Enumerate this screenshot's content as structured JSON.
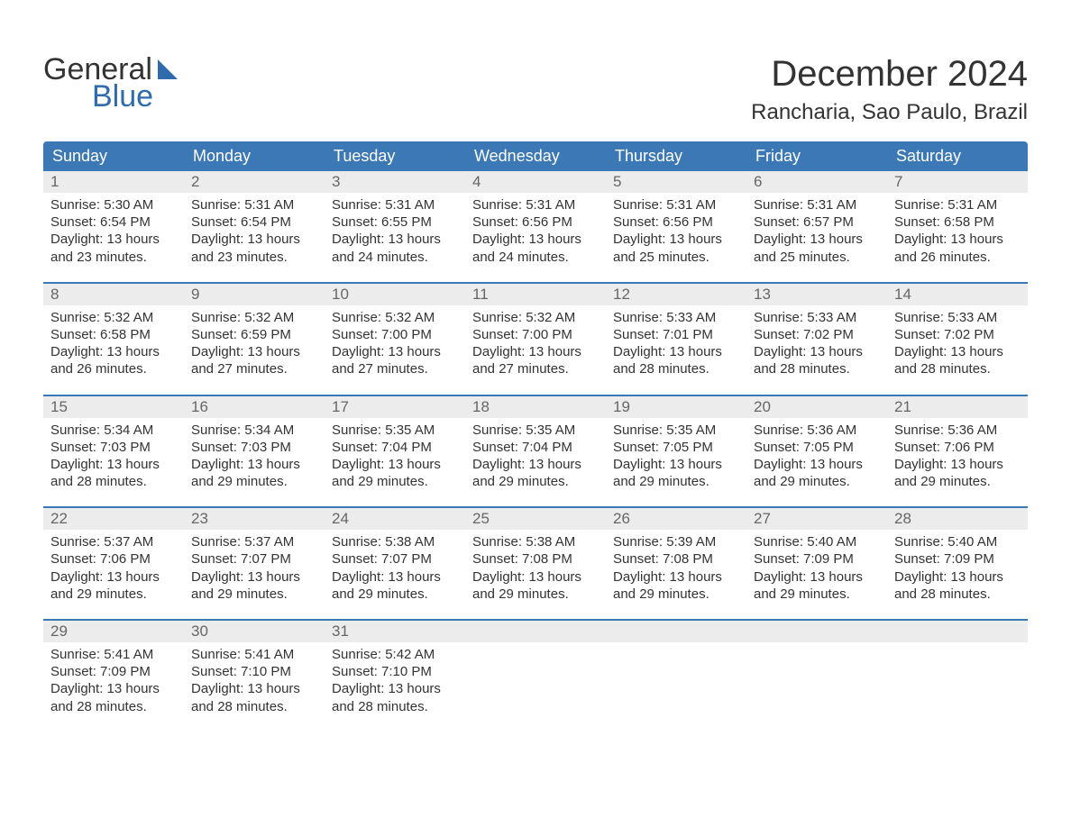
{
  "brand": {
    "line1": "General",
    "line2": "Blue",
    "logo_color": "#2f6bad",
    "text_color": "#333333"
  },
  "title": {
    "month": "December 2024",
    "location": "Rancharia, Sao Paulo, Brazil"
  },
  "colors": {
    "header_bg": "#3b78b5",
    "header_text": "#ffffff",
    "daynum_bg": "#ececec",
    "daynum_text": "#666666",
    "body_text": "#333333",
    "week_divider": "#3b78b5",
    "page_bg": "#ffffff"
  },
  "day_labels": [
    "Sunday",
    "Monday",
    "Tuesday",
    "Wednesday",
    "Thursday",
    "Friday",
    "Saturday"
  ],
  "labels": {
    "sunrise": "Sunrise:",
    "sunset": "Sunset:",
    "daylight": "Daylight:"
  },
  "weeks": [
    [
      {
        "num": "1",
        "sunrise": "5:30 AM",
        "sunset": "6:54 PM",
        "daylight": "13 hours and 23 minutes."
      },
      {
        "num": "2",
        "sunrise": "5:31 AM",
        "sunset": "6:54 PM",
        "daylight": "13 hours and 23 minutes."
      },
      {
        "num": "3",
        "sunrise": "5:31 AM",
        "sunset": "6:55 PM",
        "daylight": "13 hours and 24 minutes."
      },
      {
        "num": "4",
        "sunrise": "5:31 AM",
        "sunset": "6:56 PM",
        "daylight": "13 hours and 24 minutes."
      },
      {
        "num": "5",
        "sunrise": "5:31 AM",
        "sunset": "6:56 PM",
        "daylight": "13 hours and 25 minutes."
      },
      {
        "num": "6",
        "sunrise": "5:31 AM",
        "sunset": "6:57 PM",
        "daylight": "13 hours and 25 minutes."
      },
      {
        "num": "7",
        "sunrise": "5:31 AM",
        "sunset": "6:58 PM",
        "daylight": "13 hours and 26 minutes."
      }
    ],
    [
      {
        "num": "8",
        "sunrise": "5:32 AM",
        "sunset": "6:58 PM",
        "daylight": "13 hours and 26 minutes."
      },
      {
        "num": "9",
        "sunrise": "5:32 AM",
        "sunset": "6:59 PM",
        "daylight": "13 hours and 27 minutes."
      },
      {
        "num": "10",
        "sunrise": "5:32 AM",
        "sunset": "7:00 PM",
        "daylight": "13 hours and 27 minutes."
      },
      {
        "num": "11",
        "sunrise": "5:32 AM",
        "sunset": "7:00 PM",
        "daylight": "13 hours and 27 minutes."
      },
      {
        "num": "12",
        "sunrise": "5:33 AM",
        "sunset": "7:01 PM",
        "daylight": "13 hours and 28 minutes."
      },
      {
        "num": "13",
        "sunrise": "5:33 AM",
        "sunset": "7:02 PM",
        "daylight": "13 hours and 28 minutes."
      },
      {
        "num": "14",
        "sunrise": "5:33 AM",
        "sunset": "7:02 PM",
        "daylight": "13 hours and 28 minutes."
      }
    ],
    [
      {
        "num": "15",
        "sunrise": "5:34 AM",
        "sunset": "7:03 PM",
        "daylight": "13 hours and 28 minutes."
      },
      {
        "num": "16",
        "sunrise": "5:34 AM",
        "sunset": "7:03 PM",
        "daylight": "13 hours and 29 minutes."
      },
      {
        "num": "17",
        "sunrise": "5:35 AM",
        "sunset": "7:04 PM",
        "daylight": "13 hours and 29 minutes."
      },
      {
        "num": "18",
        "sunrise": "5:35 AM",
        "sunset": "7:04 PM",
        "daylight": "13 hours and 29 minutes."
      },
      {
        "num": "19",
        "sunrise": "5:35 AM",
        "sunset": "7:05 PM",
        "daylight": "13 hours and 29 minutes."
      },
      {
        "num": "20",
        "sunrise": "5:36 AM",
        "sunset": "7:05 PM",
        "daylight": "13 hours and 29 minutes."
      },
      {
        "num": "21",
        "sunrise": "5:36 AM",
        "sunset": "7:06 PM",
        "daylight": "13 hours and 29 minutes."
      }
    ],
    [
      {
        "num": "22",
        "sunrise": "5:37 AM",
        "sunset": "7:06 PM",
        "daylight": "13 hours and 29 minutes."
      },
      {
        "num": "23",
        "sunrise": "5:37 AM",
        "sunset": "7:07 PM",
        "daylight": "13 hours and 29 minutes."
      },
      {
        "num": "24",
        "sunrise": "5:38 AM",
        "sunset": "7:07 PM",
        "daylight": "13 hours and 29 minutes."
      },
      {
        "num": "25",
        "sunrise": "5:38 AM",
        "sunset": "7:08 PM",
        "daylight": "13 hours and 29 minutes."
      },
      {
        "num": "26",
        "sunrise": "5:39 AM",
        "sunset": "7:08 PM",
        "daylight": "13 hours and 29 minutes."
      },
      {
        "num": "27",
        "sunrise": "5:40 AM",
        "sunset": "7:09 PM",
        "daylight": "13 hours and 29 minutes."
      },
      {
        "num": "28",
        "sunrise": "5:40 AM",
        "sunset": "7:09 PM",
        "daylight": "13 hours and 28 minutes."
      }
    ],
    [
      {
        "num": "29",
        "sunrise": "5:41 AM",
        "sunset": "7:09 PM",
        "daylight": "13 hours and 28 minutes."
      },
      {
        "num": "30",
        "sunrise": "5:41 AM",
        "sunset": "7:10 PM",
        "daylight": "13 hours and 28 minutes."
      },
      {
        "num": "31",
        "sunrise": "5:42 AM",
        "sunset": "7:10 PM",
        "daylight": "13 hours and 28 minutes."
      },
      {
        "empty": true
      },
      {
        "empty": true
      },
      {
        "empty": true
      },
      {
        "empty": true
      }
    ]
  ]
}
